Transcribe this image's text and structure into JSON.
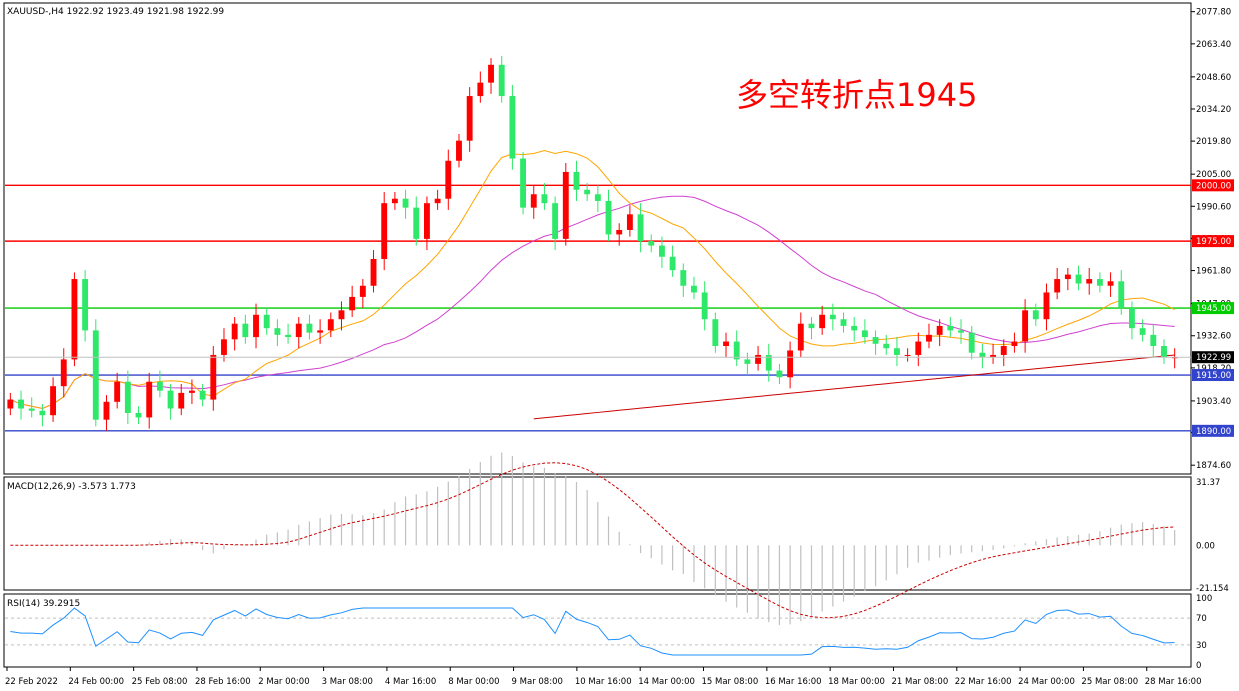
{
  "header": {
    "symbol_line": "XAUUSD-,H4  1922.92 1923.49 1921.98 1922.99"
  },
  "annotation": {
    "text": "多空转折点1945",
    "color": "#ff0000"
  },
  "colors": {
    "bull": "#ff0000",
    "bear": "#2ee86a",
    "ma_fast": "#ffa500",
    "ma_mid": "#d040d0",
    "ma_slow": "#cc0000",
    "macd_signal": "#cc0000",
    "macd_hist": "#c0c0c0",
    "rsi": "#1e90ff",
    "level_red": "#ff0000",
    "level_green": "#00cc00",
    "level_blue": "#3344cc"
  },
  "chart_data": {
    "type": "candlestick",
    "symbol": "XAUUSD-",
    "timeframe": "H4",
    "ylim": [
      1870,
      2080
    ],
    "y_ticks": [
      1874.6,
      1889.3,
      1903.4,
      1918.2,
      1932.6,
      1947.0,
      1961.8,
      1976.2,
      1990.6,
      2005.0,
      2019.8,
      2034.2,
      2048.6,
      2063.4,
      2077.8
    ],
    "y_tick_labels": [
      "1874.60",
      "1889.30",
      "1903.40",
      "1918.20",
      "1932.60",
      "1947.00",
      "1961.80",
      "1976.20",
      "1990.60",
      "2005.00",
      "2019.80",
      "2034.20",
      "2048.60",
      "2063.40",
      "2077.80"
    ],
    "last_price": "1922.99",
    "x_labels": [
      "22 Feb 2022",
      "24 Feb 00:00",
      "25 Feb 08:00",
      "28 Feb 16:00",
      "2 Mar 00:00",
      "3 Mar 08:00",
      "4 Mar 16:00",
      "8 Mar 00:00",
      "9 Mar 08:00",
      "10 Mar 16:00",
      "14 Mar 00:00",
      "15 Mar 08:00",
      "16 Mar 16:00",
      "18 Mar 00:00",
      "21 Mar 08:00",
      "22 Mar 16:00",
      "24 Mar 00:00",
      "25 Mar 08:00",
      "28 Mar 16:00"
    ],
    "levels": [
      {
        "value": 2000.0,
        "label": "2000.00",
        "color": "red"
      },
      {
        "value": 1975.0,
        "label": "1975.00",
        "color": "red"
      },
      {
        "value": 1945.0,
        "label": "1945.00",
        "color": "green"
      },
      {
        "value": 1915.0,
        "label": "1915.00",
        "color": "blue"
      },
      {
        "value": 1890.0,
        "label": "1890.00",
        "color": "blue"
      }
    ],
    "closes": [
      1904,
      1900,
      1899,
      1897,
      1910,
      1922,
      1958,
      1935,
      1895,
      1903,
      1912,
      1898,
      1896,
      1912,
      1908,
      1900,
      1907,
      1908,
      1904,
      1924,
      1931,
      1938,
      1932,
      1942,
      1936,
      1933,
      1932,
      1938,
      1934,
      1935,
      1940,
      1944,
      1950,
      1955,
      1967,
      1992,
      1994,
      1990,
      1976,
      1992,
      1994,
      2011,
      2020,
      2040,
      2046,
      2054,
      2040,
      2012,
      1990,
      1996,
      1992,
      1976,
      2006,
      1998,
      1996,
      1993,
      1978,
      1980,
      1987,
      1975,
      1973,
      1968,
      1962,
      1955,
      1952,
      1940,
      1928,
      1930,
      1922,
      1920,
      1924,
      1917,
      1914,
      1926,
      1938,
      1936,
      1942,
      1940,
      1937,
      1935,
      1932,
      1929,
      1927,
      1924,
      1924,
      1930,
      1933,
      1937,
      1935,
      1934,
      1925,
      1923,
      1924,
      1928,
      1930,
      1944,
      1940,
      1952,
      1958,
      1960,
      1956,
      1958,
      1955,
      1957,
      1945,
      1936,
      1933,
      1928,
      1923,
      1923
    ],
    "macd": {
      "label": "MACD(12,26,9) -3.573 1.773",
      "ylim": [
        -21.154,
        31.37
      ],
      "y_ticks": [
        "31.37",
        "0.00",
        "-21.154"
      ]
    },
    "rsi": {
      "label": "RSI(14) 39.2915",
      "ylim": [
        0,
        100
      ],
      "y_ticks": [
        "100",
        "70",
        "30",
        "0"
      ],
      "current": 39.2915
    }
  }
}
